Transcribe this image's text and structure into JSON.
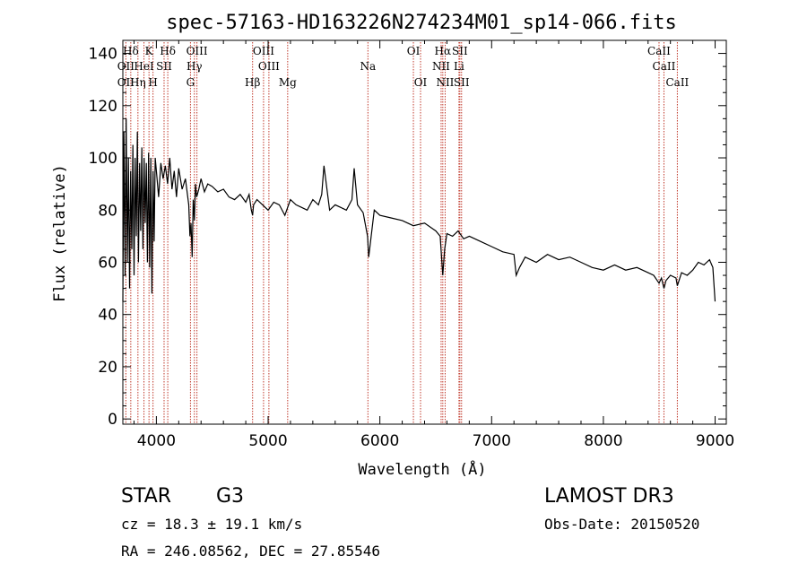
{
  "chart_data": {
    "type": "line",
    "title": "spec-57163-HD163226N274234M01_sp14-066.fits",
    "xlabel": "Wavelength (Å)",
    "ylabel": "Flux (relative)",
    "xlim": [
      3700,
      9100
    ],
    "ylim": [
      -2,
      145
    ],
    "xticks": [
      4000,
      5000,
      6000,
      7000,
      8000,
      9000
    ],
    "yticks": [
      0,
      20,
      40,
      60,
      80,
      100,
      120,
      140
    ],
    "series": [
      {
        "name": "spectrum",
        "x": [
          3700,
          3710,
          3720,
          3730,
          3740,
          3750,
          3760,
          3770,
          3780,
          3790,
          3800,
          3810,
          3820,
          3830,
          3840,
          3850,
          3860,
          3870,
          3880,
          3890,
          3900,
          3910,
          3920,
          3930,
          3940,
          3950,
          3960,
          3970,
          3980,
          3990,
          4000,
          4020,
          4040,
          4060,
          4080,
          4100,
          4120,
          4140,
          4160,
          4180,
          4200,
          4230,
          4260,
          4290,
          4300,
          4310,
          4320,
          4330,
          4340,
          4350,
          4360,
          4380,
          4400,
          4430,
          4460,
          4500,
          4550,
          4600,
          4650,
          4700,
          4750,
          4800,
          4830,
          4850,
          4861,
          4870,
          4900,
          4950,
          5000,
          5050,
          5100,
          5150,
          5200,
          5250,
          5300,
          5350,
          5400,
          5450,
          5480,
          5500,
          5550,
          5600,
          5650,
          5700,
          5750,
          5770,
          5800,
          5850,
          5890,
          5900,
          5950,
          6000,
          6100,
          6200,
          6300,
          6400,
          6500,
          6540,
          6563,
          6580,
          6600,
          6650,
          6700,
          6750,
          6800,
          6900,
          7000,
          7100,
          7200,
          7220,
          7250,
          7300,
          7400,
          7500,
          7600,
          7700,
          7800,
          7900,
          8000,
          8100,
          8200,
          8300,
          8400,
          8450,
          8498,
          8520,
          8542,
          8560,
          8600,
          8650,
          8662,
          8700,
          8750,
          8800,
          8850,
          8900,
          8950,
          8980,
          9000
        ],
        "values": [
          45,
          110,
          55,
          115,
          60,
          100,
          50,
          95,
          65,
          105,
          55,
          100,
          70,
          110,
          60,
          98,
          72,
          104,
          65,
          100,
          75,
          98,
          60,
          102,
          58,
          100,
          48,
          95,
          68,
          100,
          95,
          85,
          98,
          92,
          97,
          90,
          100,
          88,
          95,
          85,
          96,
          88,
          92,
          82,
          70,
          75,
          62,
          84,
          76,
          90,
          85,
          88,
          92,
          87,
          90,
          89,
          87,
          88,
          85,
          84,
          86,
          83,
          86,
          80,
          78,
          82,
          84,
          82,
          80,
          83,
          82,
          78,
          84,
          82,
          81,
          80,
          84,
          82,
          86,
          97,
          80,
          82,
          81,
          80,
          84,
          96,
          82,
          79,
          70,
          62,
          80,
          78,
          77,
          76,
          74,
          75,
          72,
          70,
          55,
          65,
          71,
          70,
          72,
          69,
          70,
          68,
          66,
          64,
          63,
          55,
          58,
          62,
          60,
          63,
          61,
          62,
          60,
          58,
          57,
          59,
          57,
          58,
          56,
          55,
          52,
          54,
          50,
          53,
          55,
          54,
          51,
          56,
          55,
          57,
          60,
          59,
          61,
          58,
          45
        ]
      }
    ],
    "lines": [
      {
        "label": "Hδ",
        "x": 3771,
        "row": 1
      },
      {
        "label": "K",
        "x": 3934,
        "row": 1
      },
      {
        "label": "Hδ",
        "x": 4102,
        "row": 1
      },
      {
        "label": "OIII",
        "x": 4363,
        "row": 1
      },
      {
        "label": "OIII",
        "x": 4959,
        "row": 1
      },
      {
        "label": "OI",
        "x": 6300,
        "row": 1
      },
      {
        "label": "Hα",
        "x": 6563,
        "row": 1
      },
      {
        "label": "SII",
        "x": 6716,
        "row": 1
      },
      {
        "label": "CaII",
        "x": 8498,
        "row": 1
      },
      {
        "label": "OII",
        "x": 3727,
        "row": 2
      },
      {
        "label": "HeI",
        "x": 3889,
        "row": 2
      },
      {
        "label": "SII",
        "x": 4069,
        "row": 2
      },
      {
        "label": "Hγ",
        "x": 4340,
        "row": 2
      },
      {
        "label": "OIII",
        "x": 5007,
        "row": 2
      },
      {
        "label": "Na",
        "x": 5893,
        "row": 2
      },
      {
        "label": "NII",
        "x": 6548,
        "row": 2
      },
      {
        "label": "Li",
        "x": 6708,
        "row": 2
      },
      {
        "label": "CaII",
        "x": 8542,
        "row": 2
      },
      {
        "label": "OII",
        "x": 3727,
        "row": 3
      },
      {
        "label": "Hη",
        "x": 3835,
        "row": 3
      },
      {
        "label": "H",
        "x": 3970,
        "row": 3
      },
      {
        "label": "G",
        "x": 4305,
        "row": 3
      },
      {
        "label": "Hβ",
        "x": 4861,
        "row": 3
      },
      {
        "label": "Mg",
        "x": 5175,
        "row": 3
      },
      {
        "label": "OI",
        "x": 6364,
        "row": 3
      },
      {
        "label": "NII",
        "x": 6584,
        "row": 3
      },
      {
        "label": "SII",
        "x": 6731,
        "row": 3
      },
      {
        "label": "CaII",
        "x": 8662,
        "row": 3
      }
    ]
  },
  "info": {
    "class": "STAR",
    "subclass": "G3",
    "survey": "LAMOST DR3",
    "cz": "cz = 18.3 ± 19.1 km/s",
    "obs_date": "Obs-Date: 20150520",
    "radec": "RA = 246.08562, DEC =  27.85546"
  },
  "colors": {
    "axis": "#000000",
    "spectrum": "#000000",
    "line_marker": "#c0392b"
  }
}
